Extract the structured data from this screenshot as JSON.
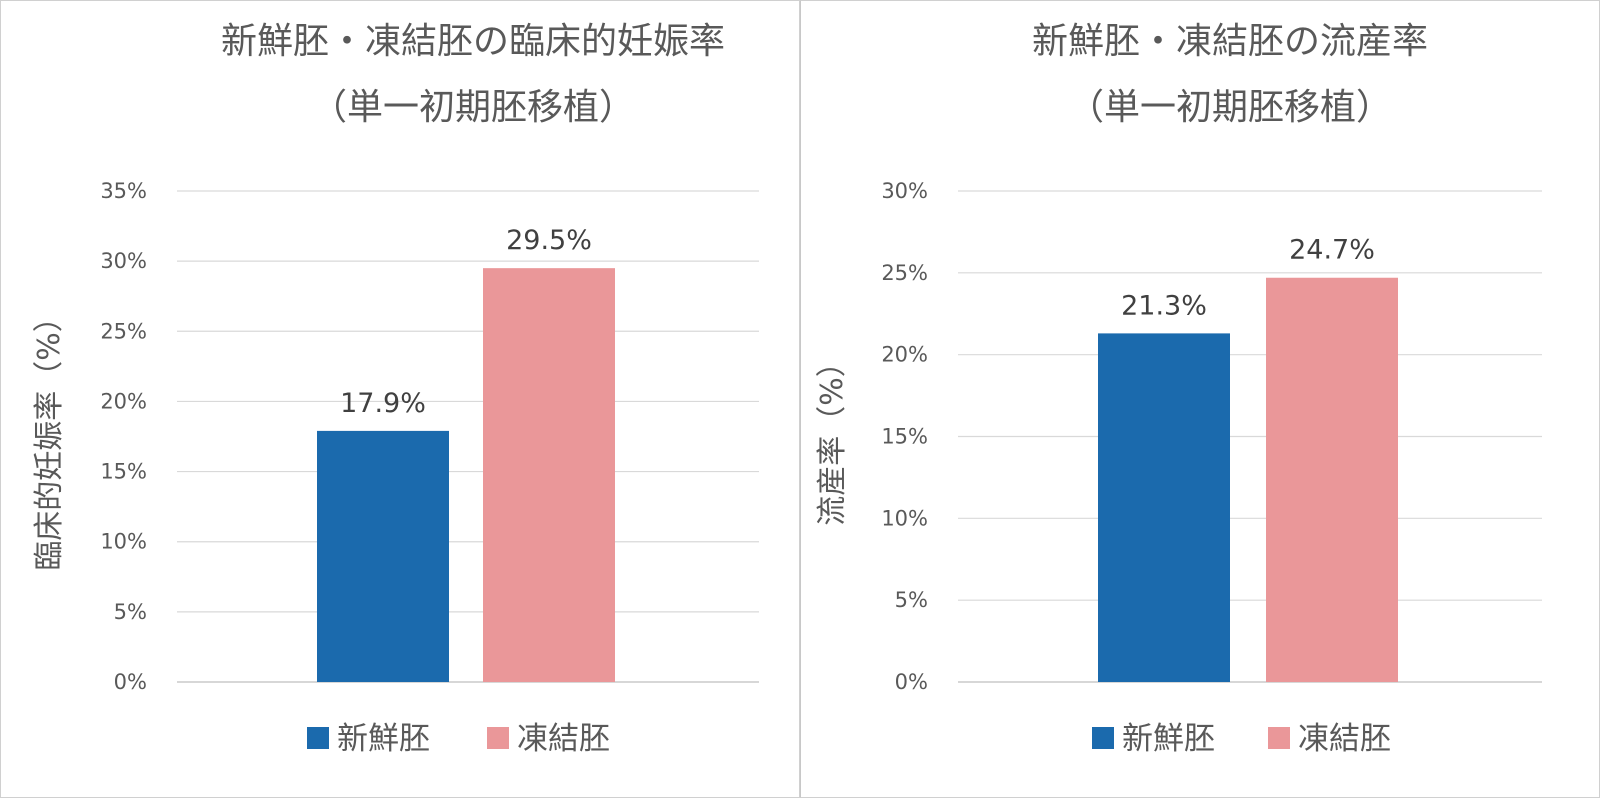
{
  "chart_data": [
    {
      "type": "bar",
      "title_lines": [
        "新鮮胚・凍結胚の臨床的妊娠率",
        "（単一初期胚移植）"
      ],
      "ylabel": "臨床的妊娠率（%）",
      "xlabel": "",
      "ylim": [
        0,
        35
      ],
      "yticks": [
        "0%",
        "5%",
        "10%",
        "15%",
        "20%",
        "25%",
        "30%",
        "35%"
      ],
      "ytick_values": [
        0,
        5,
        10,
        15,
        20,
        25,
        30,
        35
      ],
      "grid": true,
      "legend_placement": "bottom",
      "series": [
        {
          "name": "新鮮胚",
          "value": 17.9,
          "label": "17.9%",
          "color": "#1b6aad"
        },
        {
          "name": "凍結胚",
          "value": 29.5,
          "label": "29.5%",
          "color": "#ea9799"
        }
      ]
    },
    {
      "type": "bar",
      "title_lines": [
        "新鮮胚・凍結胚の流産率",
        "（単一初期胚移植）"
      ],
      "ylabel": "流産率（%）",
      "xlabel": "",
      "ylim": [
        0,
        30
      ],
      "yticks": [
        "0%",
        "5%",
        "10%",
        "15%",
        "20%",
        "25%",
        "30%"
      ],
      "ytick_values": [
        0,
        5,
        10,
        15,
        20,
        25,
        30
      ],
      "grid": true,
      "legend_placement": "bottom",
      "series": [
        {
          "name": "新鮮胚",
          "value": 21.3,
          "label": "21.3%",
          "color": "#1b6aad"
        },
        {
          "name": "凍結胚",
          "value": 24.7,
          "label": "24.7%",
          "color": "#ea9799"
        }
      ]
    }
  ]
}
